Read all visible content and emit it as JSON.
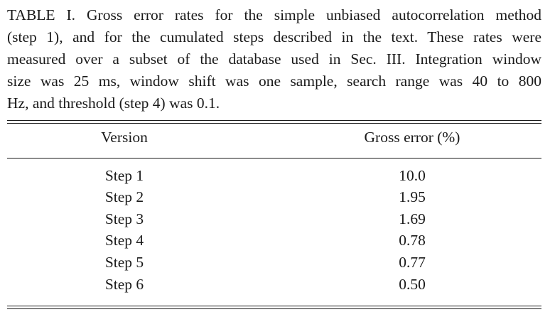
{
  "caption": {
    "line1": "TABLE I. Gross error rates for the simple unbiased autocorrelation method",
    "line2": "(step 1), and for the cumulated steps described in the text. These rates were",
    "line3": "measured over a subset of the database used in Sec. III. Integration window",
    "line4": "size was 25 ms, window shift was one sample, search range was 40 to 800",
    "line5": "Hz, and threshold (step 4) was 0.1."
  },
  "table": {
    "headers": [
      "Version",
      "Gross error (%)"
    ],
    "rows": [
      {
        "version": "Step 1",
        "error": "10.0"
      },
      {
        "version": "Step 2",
        "error": "1.95"
      },
      {
        "version": "Step 3",
        "error": "1.69"
      },
      {
        "version": "Step 4",
        "error": "0.78"
      },
      {
        "version": "Step 5",
        "error": "0.77"
      },
      {
        "version": "Step 6",
        "error": "0.50"
      }
    ]
  }
}
